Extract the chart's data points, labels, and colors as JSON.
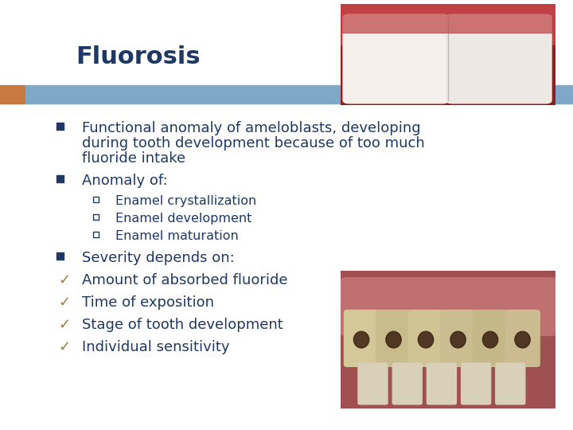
{
  "title": "Fluorosis",
  "title_color": "#1F3864",
  "title_fontsize": 22,
  "bg_color": "#FFFFFF",
  "header_bar_color": "#7FA7C8",
  "header_bar_left_accent_color": "#C87941",
  "text_color": "#1F3864",
  "bullet_square_color": "#1F3864",
  "check_color": "#9B7D3A",
  "sub_bullet_square_color": "#1F3864",
  "font_family": "DejaVu Sans",
  "bullet1_lines": [
    "Functional anomaly of ameloblasts, developing",
    "during tooth development because of too much",
    "fluoride intake"
  ],
  "bullet2": "Anomaly of:",
  "sub_bullets": [
    "Enamel crystallization",
    "Enamel development",
    "Enamel maturation"
  ],
  "bullet3": "Severity depends on:",
  "check_bullets": [
    "Amount of absorbed fluoride",
    "Time of exposition",
    "Stage of tooth development",
    "Individual sensitivity"
  ],
  "main_fontsize": 13,
  "sub_fontsize": 11.5
}
